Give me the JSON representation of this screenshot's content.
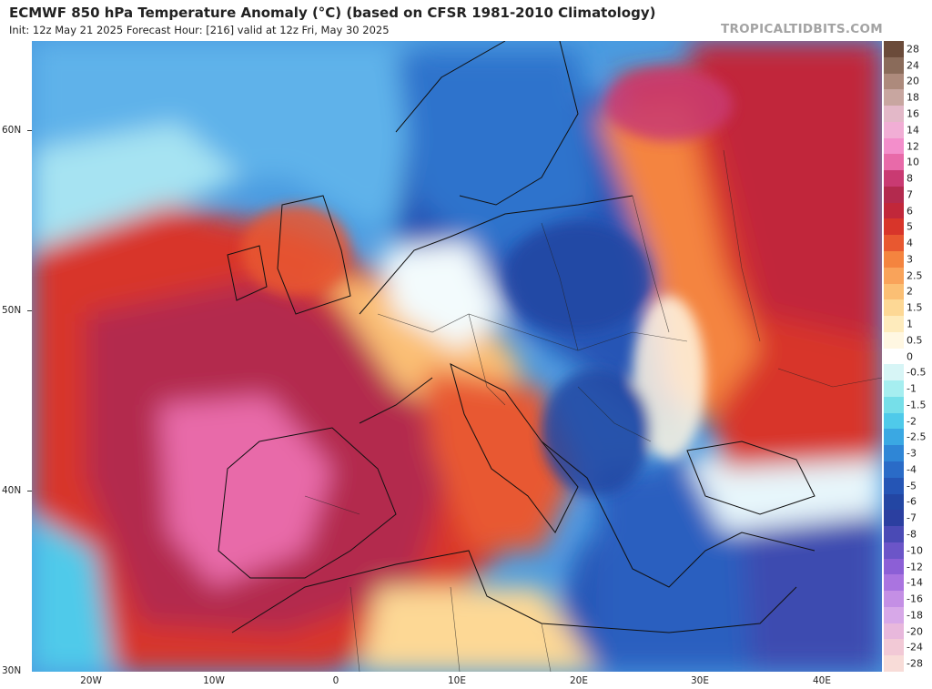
{
  "header": {
    "title": "ECMWF 850 hPa Temperature Anomaly (°C) (based on CFSR 1981-2010 Climatology)",
    "subtitle": "Init: 12z May 21 2025   Forecast Hour: [216]   valid at 12z Fri, May 30 2025",
    "brand": "TROPICALTIDBITS.COM"
  },
  "axes": {
    "lat_labels": [
      "60N",
      "50N",
      "40N",
      "30N"
    ],
    "lon_labels": [
      "20W",
      "10W",
      "0",
      "10E",
      "20E",
      "30E",
      "40E"
    ]
  },
  "colorbar": {
    "units": "°C",
    "levels": [
      {
        "label": "28",
        "color": "#6b4b3a"
      },
      {
        "label": "24",
        "color": "#8a6b5a"
      },
      {
        "label": "20",
        "color": "#ad8a7c"
      },
      {
        "label": "18",
        "color": "#c8a6a0"
      },
      {
        "label": "16",
        "color": "#e3b8c8"
      },
      {
        "label": "14",
        "color": "#f1aed5"
      },
      {
        "label": "12",
        "color": "#f38ecb"
      },
      {
        "label": "10",
        "color": "#e86aa9"
      },
      {
        "label": "8",
        "color": "#c93a72"
      },
      {
        "label": "7",
        "color": "#b32a4e"
      },
      {
        "label": "6",
        "color": "#c1273a"
      },
      {
        "label": "5",
        "color": "#d8352a"
      },
      {
        "label": "4",
        "color": "#e85830"
      },
      {
        "label": "3",
        "color": "#f4843f"
      },
      {
        "label": "2.5",
        "color": "#f9a35a"
      },
      {
        "label": "2",
        "color": "#fbbf74"
      },
      {
        "label": "1.5",
        "color": "#fdd895"
      },
      {
        "label": "1",
        "color": "#feebbc"
      },
      {
        "label": "0.5",
        "color": "#fff7e2"
      },
      {
        "label": "0",
        "color": "#ffffff"
      },
      {
        "label": "-0.5",
        "color": "#d7f5f6"
      },
      {
        "label": "-1",
        "color": "#a6eef0"
      },
      {
        "label": "-1.5",
        "color": "#76dfe9"
      },
      {
        "label": "-2",
        "color": "#4fcaea"
      },
      {
        "label": "-2.5",
        "color": "#3aa8e3"
      },
      {
        "label": "-3",
        "color": "#2f86d6"
      },
      {
        "label": "-4",
        "color": "#2a6bc7"
      },
      {
        "label": "-5",
        "color": "#2555b5"
      },
      {
        "label": "-6",
        "color": "#2346a3"
      },
      {
        "label": "-7",
        "color": "#2b3fa0"
      },
      {
        "label": "-8",
        "color": "#4a4ab5"
      },
      {
        "label": "-10",
        "color": "#6b55c8"
      },
      {
        "label": "-12",
        "color": "#8c5fd6"
      },
      {
        "label": "-14",
        "color": "#aa74e0"
      },
      {
        "label": "-16",
        "color": "#c48fe5"
      },
      {
        "label": "-18",
        "color": "#d7a8e8"
      },
      {
        "label": "-20",
        "color": "#e8b8dc"
      },
      {
        "label": "-24",
        "color": "#f2c9d6"
      },
      {
        "label": "-28",
        "color": "#f8dcd8"
      }
    ]
  }
}
